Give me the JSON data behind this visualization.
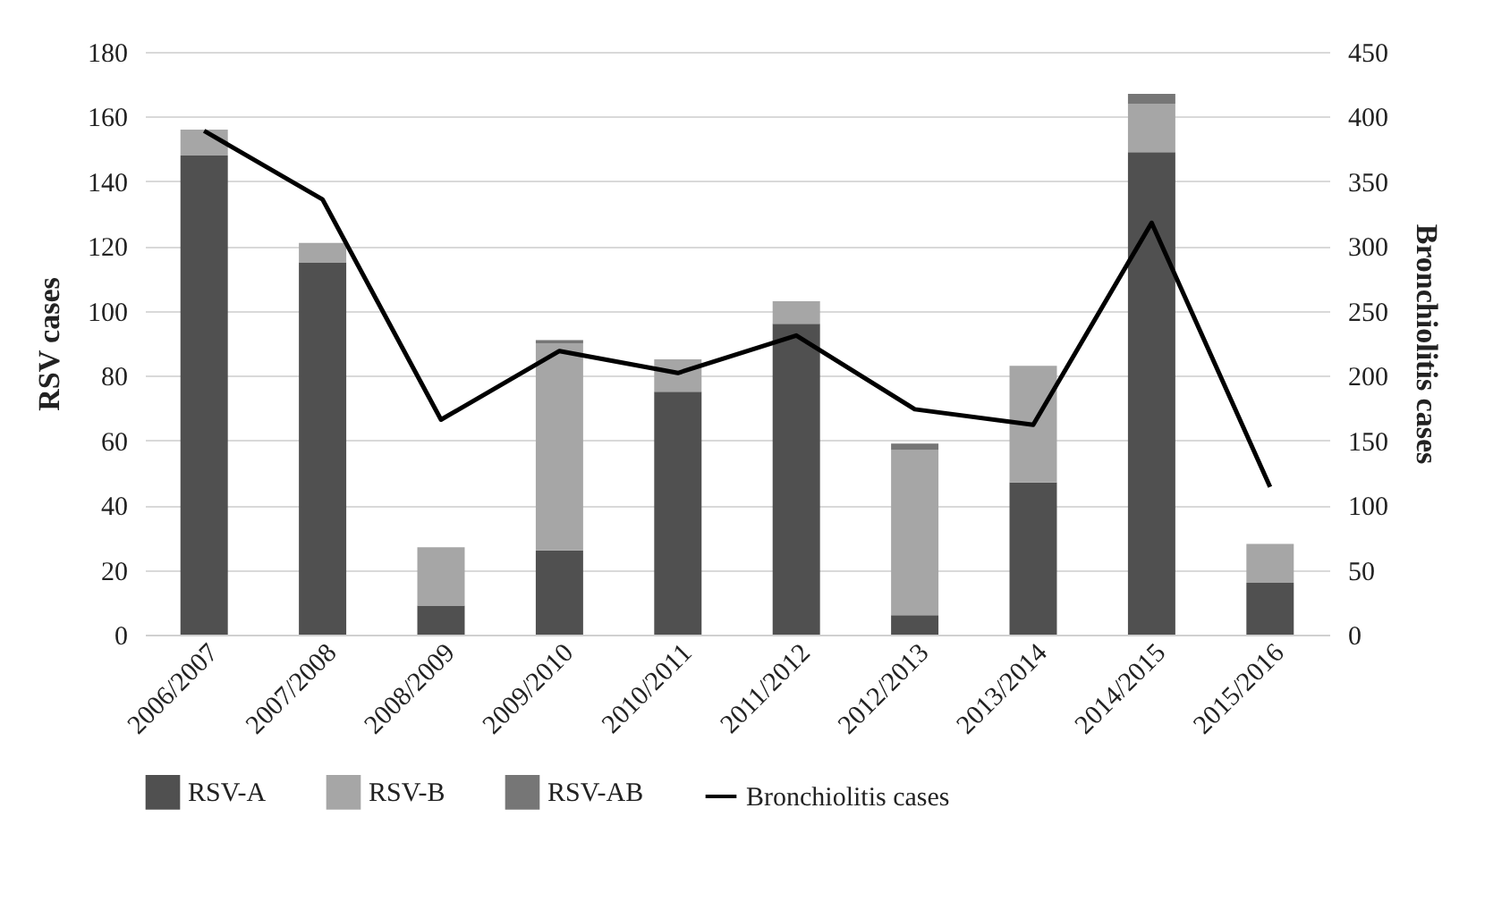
{
  "chart_data": {
    "type": "bar",
    "stacked": true,
    "ylabel": "RSV cases",
    "y2label": "Bronchiolitis cases",
    "categories": [
      "2006/2007",
      "2007/2008",
      "2008/2009",
      "2009/2010",
      "2010/2011",
      "2011/2012",
      "2012/2013",
      "2013/2014",
      "2014/2015",
      "2015/2016"
    ],
    "series": [
      {
        "name": "RSV-A",
        "color": "#505050",
        "values": [
          148,
          115,
          9,
          26,
          75,
          96,
          6,
          47,
          149,
          16
        ]
      },
      {
        "name": "RSV-B",
        "color": "#a6a6a6",
        "values": [
          8,
          6,
          18,
          64,
          10,
          7,
          51,
          36,
          15,
          12
        ]
      },
      {
        "name": "RSV-AB",
        "color": "#767676",
        "values": [
          0,
          0,
          0,
          1,
          0,
          0,
          2,
          0,
          3,
          0
        ]
      },
      {
        "name": "Bronchiolitis cases",
        "type": "line",
        "axis": "y2",
        "color": "#000000",
        "values": [
          389,
          336,
          166,
          219,
          202,
          231,
          174,
          162,
          318,
          114
        ]
      }
    ],
    "ylim": [
      0,
      180
    ],
    "yticks": [
      0,
      20,
      40,
      60,
      80,
      100,
      120,
      140,
      160,
      180
    ],
    "y2lim": [
      0,
      450
    ],
    "y2ticks": [
      0,
      50,
      100,
      150,
      200,
      250,
      300,
      350,
      400,
      450
    ],
    "grid": "y",
    "legend": "bottom",
    "marker": "none",
    "line_style": "solid"
  }
}
